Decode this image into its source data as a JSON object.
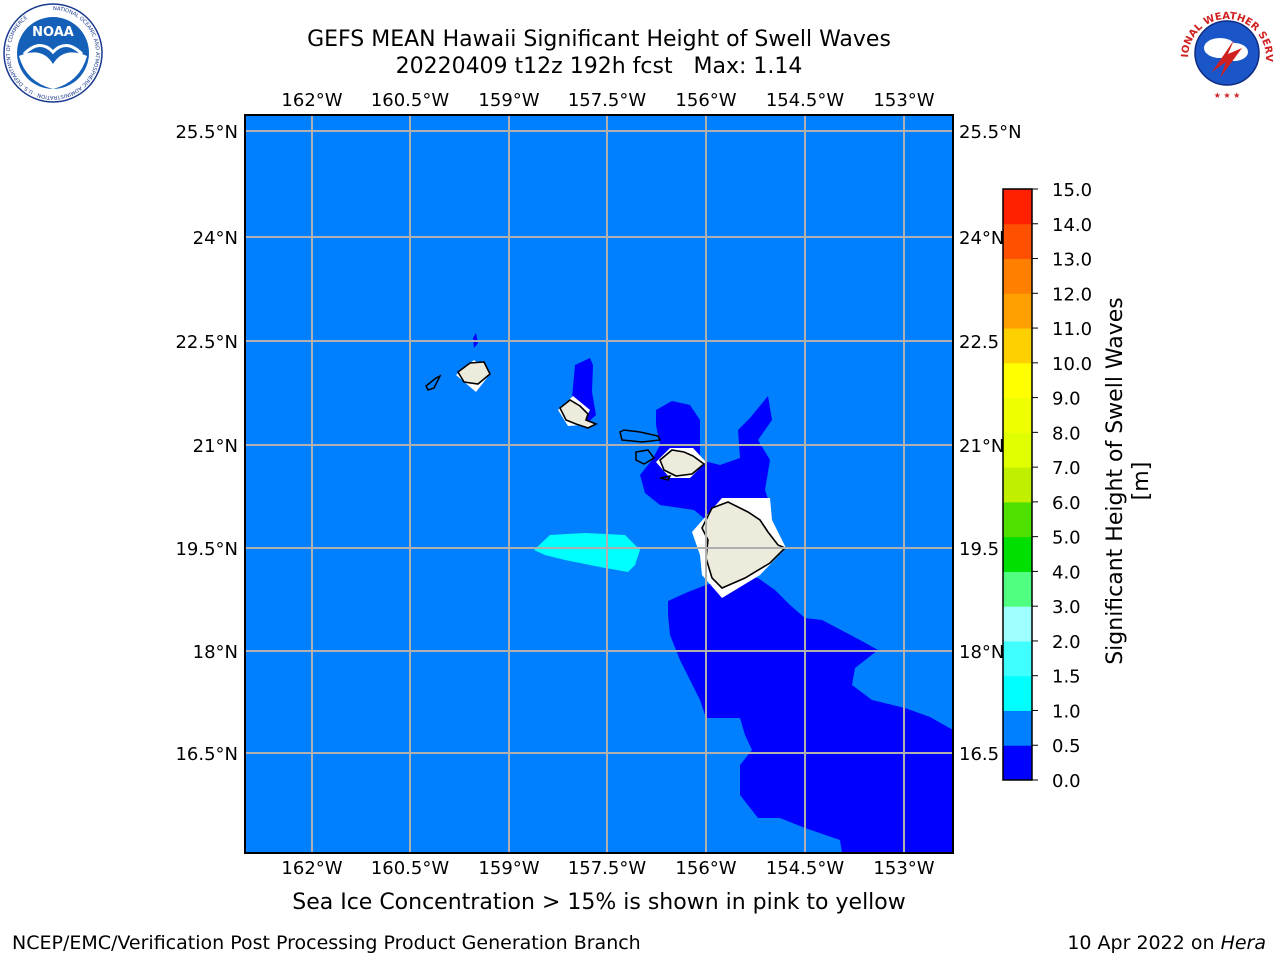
{
  "title": {
    "line1": "GEFS MEAN Hawaii Significant Height of Swell Waves",
    "line2": "20220409 t12z 192h fcst   Max: 1.14"
  },
  "logos": {
    "left": {
      "name": "noaa-logo",
      "text": "NOAA",
      "ring_text": "NATIONAL OCEANIC AND ATMOSPHERIC ADMINISTRATION · U.S. DEPARTMENT OF COMMERCE"
    },
    "right": {
      "name": "nws-logo",
      "ring_text": "NATIONAL WEATHER SERVICE"
    }
  },
  "map": {
    "lon_ticks": [
      "162°W",
      "160.5°W",
      "159°W",
      "157.5°W",
      "156°W",
      "154.5°W",
      "153°W"
    ],
    "lat_ticks": [
      "25.5°N",
      "24°N",
      "22.5°N",
      "21°N",
      "19.5°N",
      "18°N",
      "16.5°N"
    ],
    "lat_ticks_right": [
      "25.5°N",
      "24°N",
      "22.5",
      "21°N",
      "19.5",
      "18°N",
      "16.5"
    ],
    "lon_range": [
      -163,
      -152.2
    ],
    "lat_range": [
      15.2,
      25.8
    ],
    "gridlines": true,
    "colors": {
      "ocean": "#0080ff",
      "low_swell": "#0000ff",
      "med_swell": "#00ffff",
      "land": "#ecebdc",
      "grid": "#b0b0b0"
    }
  },
  "colorbar": {
    "label": "Significant Height of Swell Waves [m]",
    "ticks": [
      "15.0",
      "14.0",
      "13.0",
      "12.0",
      "11.0",
      "10.0",
      "9.0",
      "8.0",
      "7.0",
      "6.0",
      "5.0",
      "4.0",
      "3.0",
      "2.0",
      "1.5",
      "1.0",
      "0.5",
      "0.0"
    ],
    "bins": [
      {
        "from": 0.0,
        "to": 0.5,
        "color": "#0000ff"
      },
      {
        "from": 0.5,
        "to": 1.0,
        "color": "#0080ff"
      },
      {
        "from": 1.0,
        "to": 1.5,
        "color": "#00ffff"
      },
      {
        "from": 1.5,
        "to": 2.0,
        "color": "#40ffff"
      },
      {
        "from": 2.0,
        "to": 3.0,
        "color": "#a0ffff"
      },
      {
        "from": 3.0,
        "to": 4.0,
        "color": "#50ff80"
      },
      {
        "from": 4.0,
        "to": 5.0,
        "color": "#00e000"
      },
      {
        "from": 5.0,
        "to": 6.0,
        "color": "#50e000"
      },
      {
        "from": 6.0,
        "to": 7.0,
        "color": "#c0f000"
      },
      {
        "from": 7.0,
        "to": 8.0,
        "color": "#e0ff00"
      },
      {
        "from": 8.0,
        "to": 9.0,
        "color": "#f0ff00"
      },
      {
        "from": 9.0,
        "to": 10.0,
        "color": "#ffff00"
      },
      {
        "from": 10.0,
        "to": 11.0,
        "color": "#ffd000"
      },
      {
        "from": 11.0,
        "to": 12.0,
        "color": "#ffa000"
      },
      {
        "from": 12.0,
        "to": 13.0,
        "color": "#ff8000"
      },
      {
        "from": 13.0,
        "to": 14.0,
        "color": "#ff5000"
      },
      {
        "from": 14.0,
        "to": 15.0,
        "color": "#ff2000"
      }
    ]
  },
  "subtitle": "Sea Ice Concentration > 15% is shown in pink to yellow",
  "footer": {
    "left": "NCEP/EMC/Verification Post Processing Product Generation Branch",
    "right_prefix": "10 Apr 2022 on ",
    "right_machine": "Hera"
  }
}
